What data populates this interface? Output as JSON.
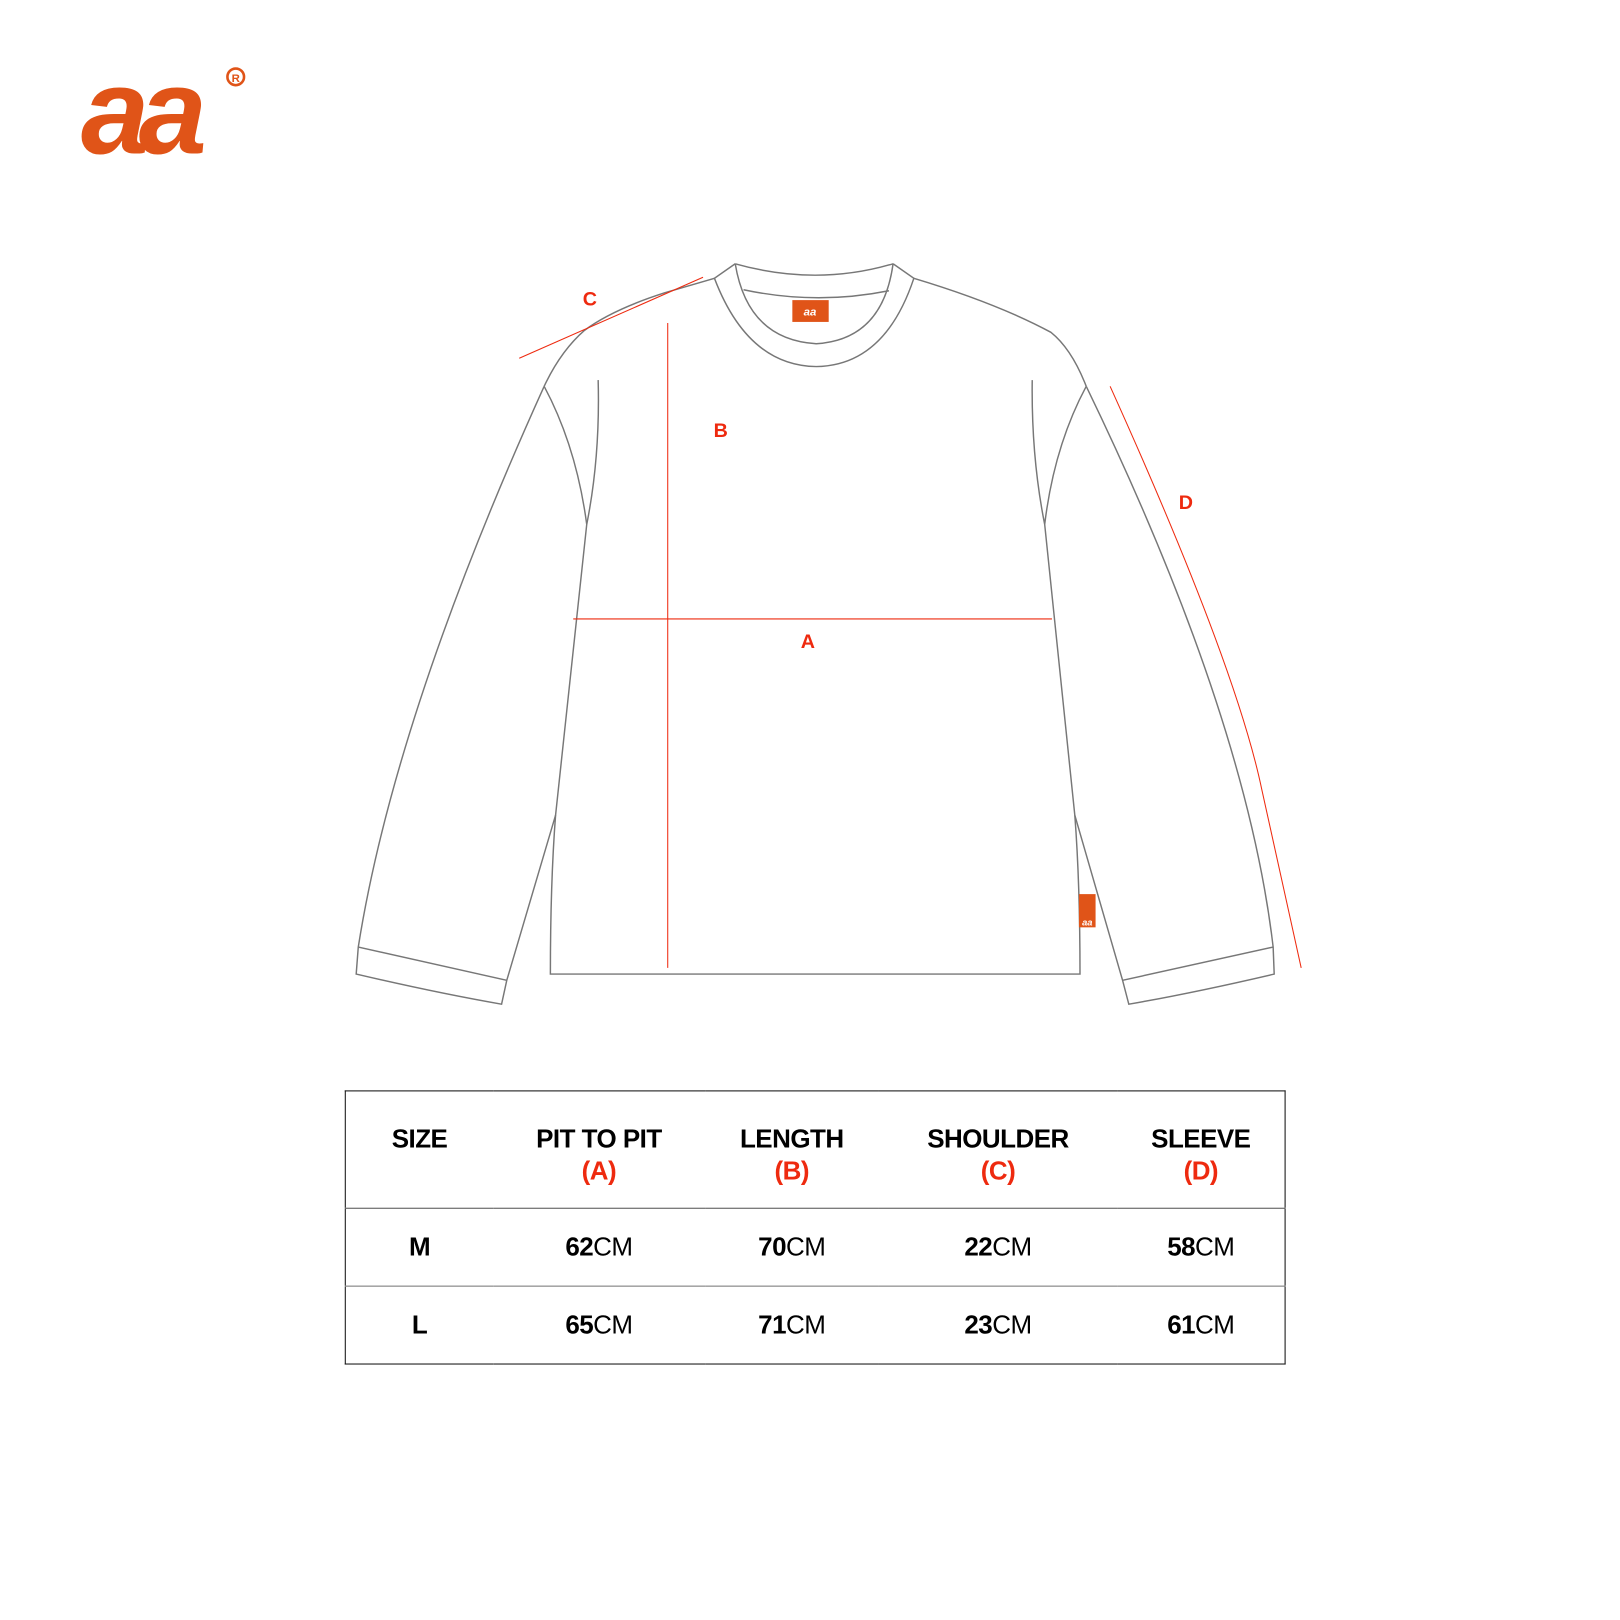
{
  "brand": {
    "logo_text": "aa",
    "registered": "®",
    "color": "#e05418"
  },
  "diagram": {
    "labels": {
      "a": "A",
      "b": "B",
      "c": "C",
      "d": "D"
    },
    "line_color": "#ee2a0f",
    "tag_text": "aa"
  },
  "table": {
    "headers": [
      {
        "title": "SIZE",
        "sub": ""
      },
      {
        "title": "PIT TO PIT",
        "sub": "(A)"
      },
      {
        "title": "LENGTH",
        "sub": "(B)"
      },
      {
        "title": "SHOULDER",
        "sub": "(C)"
      },
      {
        "title": "SLEEVE",
        "sub": "(D)"
      }
    ],
    "unit": "CM",
    "rows": [
      {
        "size": "M",
        "values": [
          "62",
          "70",
          "22",
          "58"
        ]
      },
      {
        "size": "L",
        "values": [
          "65",
          "71",
          "23",
          "61"
        ]
      }
    ]
  }
}
